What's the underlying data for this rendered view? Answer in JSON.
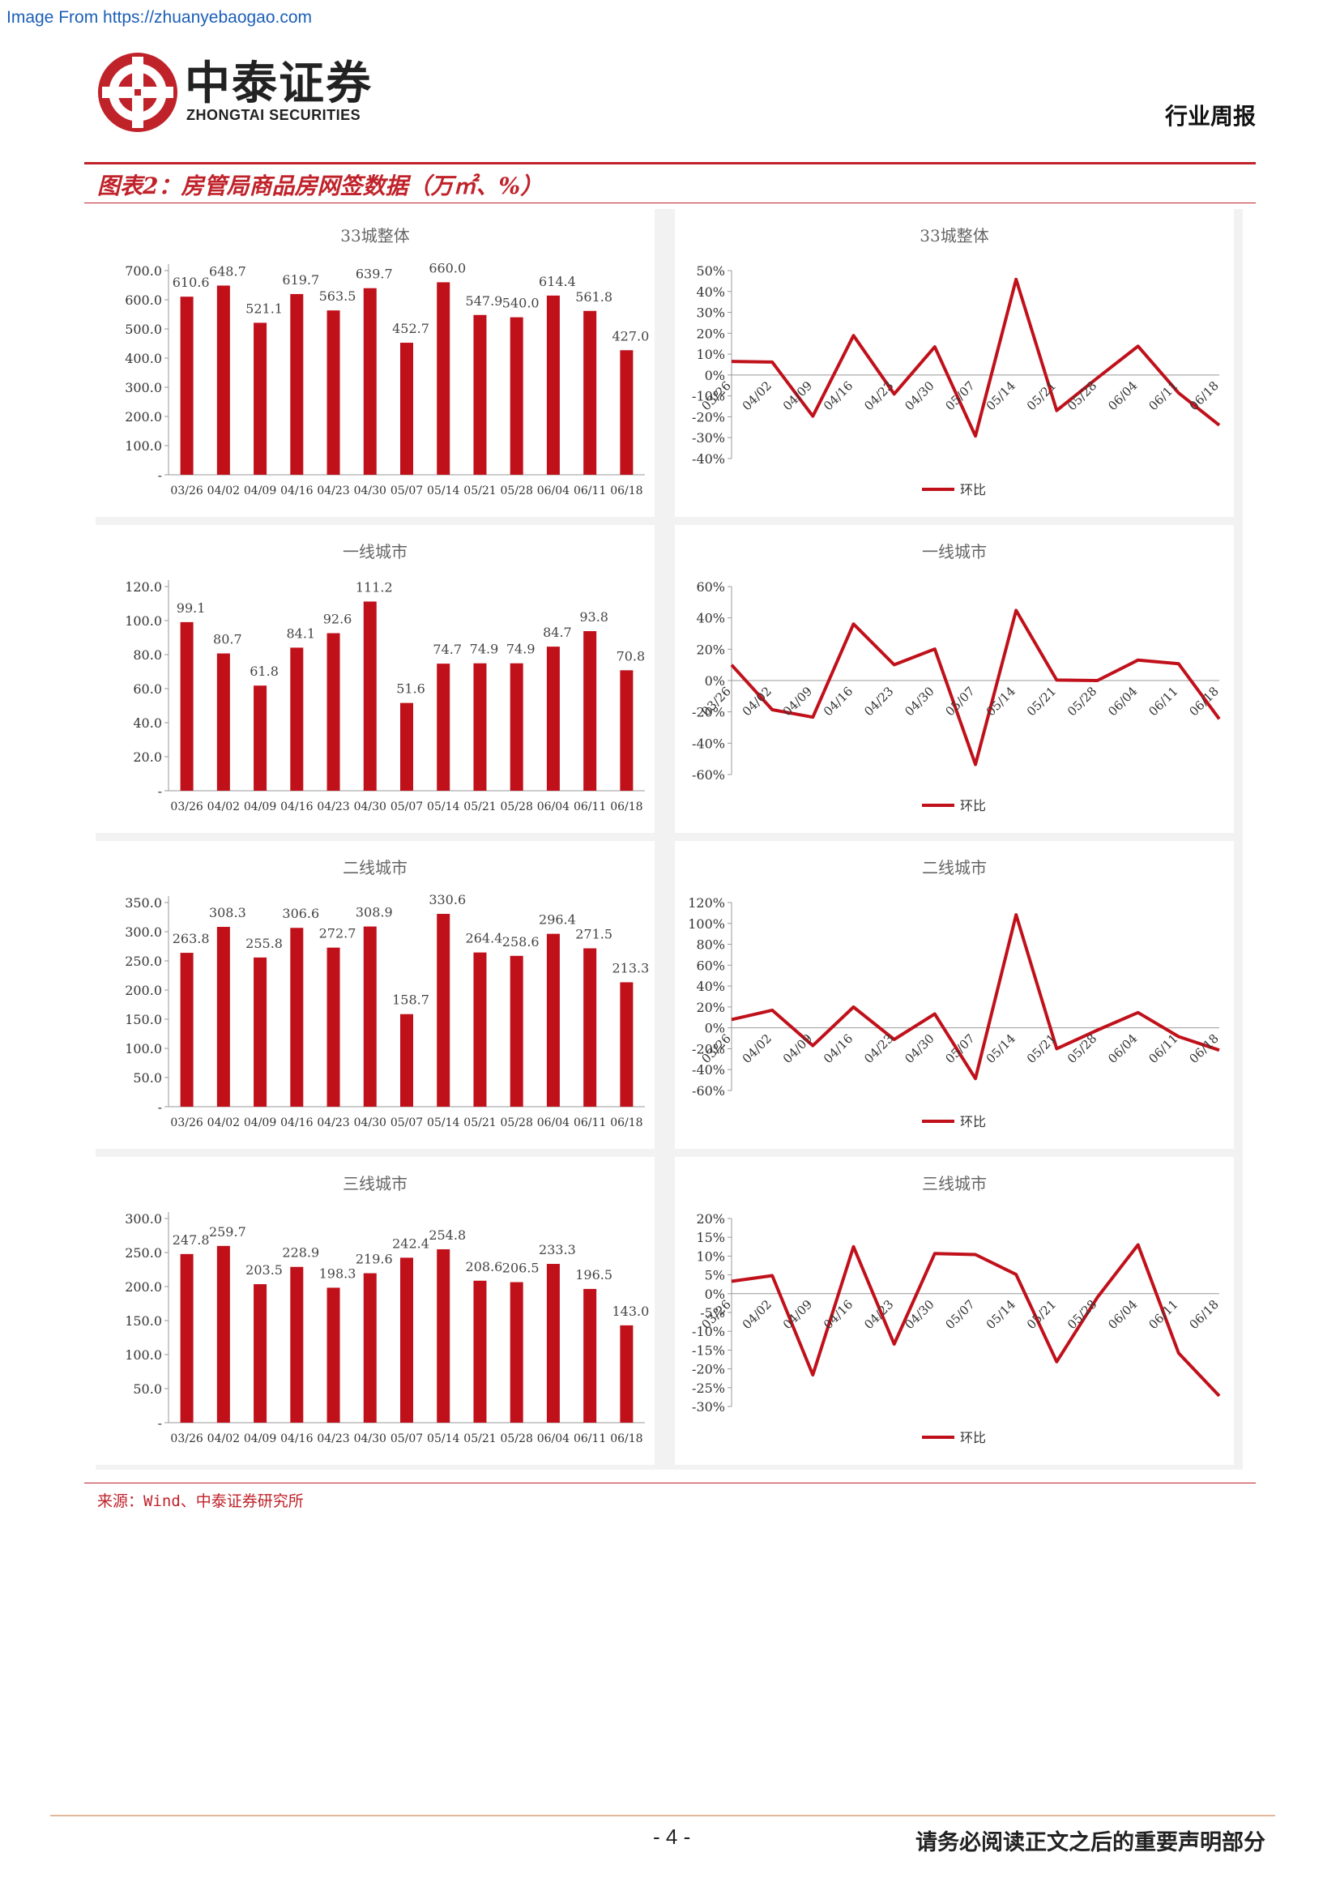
{
  "header": {
    "source_link": "Image From https://zhuanyebaogao.com",
    "logo_cn": "中泰证券",
    "logo_en": "ZHONGTAI SECURITIES",
    "report_type": "行业周报"
  },
  "figure": {
    "title": "图表2：房管局商品房网签数据（万㎡、%）",
    "source": "来源：Wind、中泰证券研究所"
  },
  "footer": {
    "page": "- 4 -",
    "disclaimer": "请务必阅读正文之后的重要声明部分"
  },
  "colors": {
    "accent": "#c0222a",
    "bar": "#c0111b",
    "line": "#c0111b"
  },
  "chart_data": [
    {
      "type": "bar",
      "title": "33城整体",
      "categories": [
        "03/26",
        "04/02",
        "04/09",
        "04/16",
        "04/23",
        "04/30",
        "05/07",
        "05/14",
        "05/21",
        "05/28",
        "06/04",
        "06/11",
        "06/18"
      ],
      "values": [
        610.6,
        648.7,
        521.1,
        619.7,
        563.5,
        639.7,
        452.7,
        660.0,
        547.9,
        540.0,
        614.4,
        561.8,
        427.0
      ],
      "value_labels": [
        "610.6",
        "648.7",
        "521.1",
        "619.7",
        "563.5",
        "639.7",
        "452.7",
        "660.0",
        "547.9",
        "540.0",
        "614.4",
        "561.8",
        "427.0"
      ],
      "yticks": [
        "700.0",
        "600.0",
        "500.0",
        "400.0",
        "300.0",
        "200.0",
        "100.0",
        "-"
      ],
      "ylim": [
        0,
        700
      ]
    },
    {
      "type": "line",
      "title": "33城整体",
      "legend": "环比",
      "categories": [
        "03/26",
        "04/02",
        "04/09",
        "04/16",
        "04/23",
        "04/30",
        "05/07",
        "05/14",
        "05/21",
        "05/28",
        "06/04",
        "06/11",
        "06/18"
      ],
      "values": [
        6.5,
        6.2,
        -19.7,
        18.9,
        -9.1,
        13.5,
        -29.2,
        45.8,
        -17.0,
        -1.4,
        13.8,
        -8.6,
        -24.0
      ],
      "yticks": [
        "50%",
        "40%",
        "30%",
        "20%",
        "10%",
        "0%",
        "-10%",
        "-20%",
        "-30%",
        "-40%"
      ],
      "ylim": [
        -40,
        50
      ]
    },
    {
      "type": "bar",
      "title": "一线城市",
      "categories": [
        "03/26",
        "04/02",
        "04/09",
        "04/16",
        "04/23",
        "04/30",
        "05/07",
        "05/14",
        "05/21",
        "05/28",
        "06/04",
        "06/11",
        "06/18"
      ],
      "values": [
        99.1,
        80.7,
        61.8,
        84.1,
        92.6,
        111.2,
        51.6,
        74.7,
        74.9,
        74.9,
        84.7,
        93.8,
        70.8
      ],
      "value_labels": [
        "99.1",
        "80.7",
        "61.8",
        "84.1",
        "92.6",
        "111.2",
        "51.6",
        "74.7",
        "74.9",
        "74.9",
        "84.7",
        "93.8",
        "70.8"
      ],
      "yticks": [
        "120.0",
        "100.0",
        "80.0",
        "60.0",
        "40.0",
        "20.0",
        "-"
      ],
      "ylim": [
        0,
        120
      ]
    },
    {
      "type": "line",
      "title": "一线城市",
      "legend": "环比",
      "categories": [
        "03/26",
        "04/02",
        "04/09",
        "04/16",
        "04/23",
        "04/30",
        "05/07",
        "05/14",
        "05/21",
        "05/28",
        "06/04",
        "06/11",
        "06/18"
      ],
      "values": [
        10.0,
        -18.6,
        -23.4,
        36.1,
        10.1,
        20.1,
        -53.6,
        44.8,
        0.3,
        0.0,
        13.1,
        10.7,
        -24.5
      ],
      "yticks": [
        "60%",
        "40%",
        "20%",
        "0%",
        "-20%",
        "-40%",
        "-60%"
      ],
      "ylim": [
        -60,
        60
      ]
    },
    {
      "type": "bar",
      "title": "二线城市",
      "categories": [
        "03/26",
        "04/02",
        "04/09",
        "04/16",
        "04/23",
        "04/30",
        "05/07",
        "05/14",
        "05/21",
        "05/28",
        "06/04",
        "06/11",
        "06/18"
      ],
      "values": [
        263.8,
        308.3,
        255.8,
        306.6,
        272.7,
        308.9,
        158.7,
        330.6,
        264.4,
        258.6,
        296.4,
        271.5,
        213.3
      ],
      "value_labels": [
        "263.8",
        "308.3",
        "255.8",
        "306.6",
        "272.7",
        "308.9",
        "158.7",
        "330.6",
        "264.4",
        "258.6",
        "296.4",
        "271.5",
        "213.3"
      ],
      "yticks": [
        "350.0",
        "300.0",
        "250.0",
        "200.0",
        "150.0",
        "100.0",
        "50.0",
        "-"
      ],
      "ylim": [
        0,
        350
      ]
    },
    {
      "type": "line",
      "title": "二线城市",
      "legend": "环比",
      "categories": [
        "03/26",
        "04/02",
        "04/09",
        "04/16",
        "04/23",
        "04/30",
        "05/07",
        "05/14",
        "05/21",
        "05/28",
        "06/04",
        "06/11",
        "06/18"
      ],
      "values": [
        8.0,
        16.9,
        -17.0,
        19.9,
        -11.1,
        13.3,
        -48.6,
        108.3,
        -20.0,
        -2.2,
        14.6,
        -8.4,
        -21.4
      ],
      "yticks": [
        "120%",
        "100%",
        "80%",
        "60%",
        "40%",
        "20%",
        "0%",
        "-20%",
        "-40%",
        "-60%"
      ],
      "ylim": [
        -60,
        120
      ]
    },
    {
      "type": "bar",
      "title": "三线城市",
      "categories": [
        "03/26",
        "04/02",
        "04/09",
        "04/16",
        "04/23",
        "04/30",
        "05/07",
        "05/14",
        "05/21",
        "05/28",
        "06/04",
        "06/11",
        "06/18"
      ],
      "values": [
        247.8,
        259.7,
        203.5,
        228.9,
        198.3,
        219.6,
        242.4,
        254.8,
        208.6,
        206.5,
        233.3,
        196.5,
        143.0
      ],
      "value_labels": [
        "247.8",
        "259.7",
        "203.5",
        "228.9",
        "198.3",
        "219.6",
        "242.4",
        "254.8",
        "208.6",
        "206.5",
        "233.3",
        "196.5",
        "143.0"
      ],
      "yticks": [
        "300.0",
        "250.0",
        "200.0",
        "150.0",
        "100.0",
        "50.0",
        "-"
      ],
      "ylim": [
        0,
        300
      ]
    },
    {
      "type": "line",
      "title": "三线城市",
      "legend": "环比",
      "categories": [
        "03/26",
        "04/02",
        "04/09",
        "04/16",
        "04/23",
        "04/30",
        "05/07",
        "05/14",
        "05/21",
        "05/28",
        "06/04",
        "06/11",
        "06/18"
      ],
      "values": [
        3.3,
        4.8,
        -21.6,
        12.5,
        -13.4,
        10.7,
        10.4,
        5.1,
        -18.1,
        -1.0,
        13.0,
        -15.8,
        -27.2
      ],
      "yticks": [
        "20%",
        "15%",
        "10%",
        "5%",
        "0%",
        "-5%",
        "-10%",
        "-15%",
        "-20%",
        "-25%",
        "-30%"
      ],
      "ylim": [
        -30,
        20
      ]
    }
  ]
}
